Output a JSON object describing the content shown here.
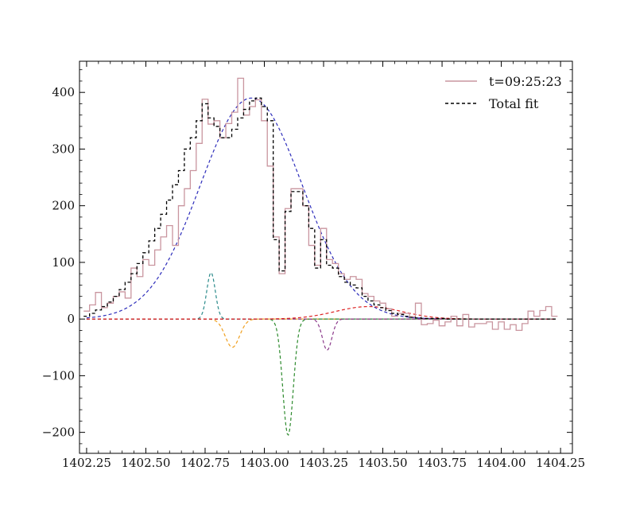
{
  "chart_data": {
    "type": "line",
    "title": "",
    "xlabel": "",
    "ylabel": "",
    "xlim": [
      1402.22,
      1404.3
    ],
    "ylim": [
      -237,
      455
    ],
    "grid": false,
    "legend_position": "top-right",
    "x_ticks": [
      1402.25,
      1402.5,
      1402.75,
      1403.0,
      1403.25,
      1403.5,
      1403.75,
      1404.0,
      1404.25
    ],
    "x_tick_labels": [
      "1402.25",
      "1402.50",
      "1402.75",
      "1403.00",
      "1403.25",
      "1403.50",
      "1403.75",
      "1404.00",
      "1404.25"
    ],
    "y_ticks": [
      -200,
      -100,
      0,
      100,
      200,
      300,
      400
    ],
    "y_tick_labels": [
      "−200",
      "−100",
      "0",
      "100",
      "200",
      "300",
      "400"
    ],
    "series": [
      {
        "name": "t=09:25:23",
        "style": "step",
        "color": "#c9959f",
        "x": [
          1402.25,
          1402.275,
          1402.3,
          1402.325,
          1402.35,
          1402.375,
          1402.4,
          1402.425,
          1402.45,
          1402.475,
          1402.5,
          1402.525,
          1402.55,
          1402.575,
          1402.6,
          1402.625,
          1402.65,
          1402.675,
          1402.7,
          1402.725,
          1402.75,
          1402.775,
          1402.8,
          1402.825,
          1402.85,
          1402.875,
          1402.9,
          1402.925,
          1402.95,
          1402.975,
          1403.0,
          1403.025,
          1403.05,
          1403.075,
          1403.1,
          1403.125,
          1403.15,
          1403.175,
          1403.2,
          1403.225,
          1403.25,
          1403.275,
          1403.3,
          1403.325,
          1403.35,
          1403.375,
          1403.4,
          1403.425,
          1403.45,
          1403.475,
          1403.5,
          1403.525,
          1403.55,
          1403.575,
          1403.6,
          1403.625,
          1403.65,
          1403.675,
          1403.7,
          1403.725,
          1403.75,
          1403.775,
          1403.8,
          1403.825,
          1403.85,
          1403.875,
          1403.9,
          1403.925,
          1403.95,
          1403.975,
          1404.0,
          1404.025,
          1404.05,
          1404.075,
          1404.1,
          1404.125,
          1404.15,
          1404.175,
          1404.2,
          1404.225
        ],
        "values": [
          14,
          25,
          47,
          20,
          28,
          40,
          48,
          37,
          90,
          75,
          105,
          95,
          122,
          145,
          165,
          130,
          200,
          230,
          262,
          310,
          388,
          344,
          350,
          320,
          345,
          365,
          425,
          360,
          375,
          387,
          350,
          270,
          145,
          80,
          195,
          230,
          230,
          200,
          130,
          95,
          160,
          105,
          98,
          80,
          70,
          75,
          70,
          45,
          40,
          32,
          28,
          18,
          5,
          10,
          10,
          4,
          28,
          -10,
          -8,
          -2,
          -12,
          -5,
          5,
          -12,
          8,
          -14,
          -8,
          -8,
          -5,
          -18,
          -5,
          -18,
          -10,
          -20,
          -8,
          14,
          5,
          15,
          22,
          5
        ]
      },
      {
        "name": "Total fit",
        "style": "step",
        "color": "#000000",
        "x": [
          1402.25,
          1402.275,
          1402.3,
          1402.325,
          1402.35,
          1402.375,
          1402.4,
          1402.425,
          1402.45,
          1402.475,
          1402.5,
          1402.525,
          1402.55,
          1402.575,
          1402.6,
          1402.625,
          1402.65,
          1402.675,
          1402.7,
          1402.725,
          1402.75,
          1402.775,
          1402.8,
          1402.825,
          1402.85,
          1402.875,
          1402.9,
          1402.925,
          1402.95,
          1402.975,
          1403.0,
          1403.025,
          1403.05,
          1403.075,
          1403.1,
          1403.125,
          1403.15,
          1403.175,
          1403.2,
          1403.225,
          1403.25,
          1403.275,
          1403.3,
          1403.325,
          1403.35,
          1403.375,
          1403.4,
          1403.425,
          1403.45,
          1403.475,
          1403.5,
          1403.525,
          1403.55,
          1403.575,
          1403.6,
          1403.625,
          1403.65,
          1403.675,
          1403.7,
          1403.725,
          1403.75,
          1403.775,
          1403.8,
          1403.825,
          1403.85,
          1403.875,
          1403.9,
          1403.925,
          1403.95,
          1403.975,
          1404.0,
          1404.025,
          1404.05,
          1404.075,
          1404.1,
          1404.125,
          1404.15,
          1404.175,
          1404.2,
          1404.225
        ],
        "values": [
          5,
          10,
          16,
          22,
          30,
          40,
          52,
          65,
          80,
          98,
          117,
          138,
          160,
          185,
          210,
          237,
          262,
          300,
          320,
          350,
          380,
          355,
          340,
          320,
          320,
          335,
          355,
          370,
          385,
          390,
          375,
          350,
          140,
          85,
          190,
          225,
          225,
          200,
          160,
          90,
          140,
          95,
          90,
          75,
          65,
          60,
          55,
          40,
          32,
          25,
          20,
          15,
          10,
          8,
          5,
          3,
          2,
          1,
          1,
          1,
          1,
          0,
          0,
          0,
          0,
          0,
          0,
          0,
          0,
          0,
          0,
          0,
          0,
          0,
          0,
          0,
          0,
          0,
          0,
          0
        ]
      }
    ],
    "components": [
      {
        "color": "#2d2dbb",
        "style": "dashed",
        "shape": "gaussian",
        "amplitude": 390,
        "center": 1402.945,
        "sigma": 0.215
      },
      {
        "color": "#2a8a8a",
        "style": "dashed",
        "shape": "gaussian",
        "amplitude": 82,
        "center": 1402.775,
        "sigma": 0.018
      },
      {
        "color": "#f0a020",
        "style": "dashed",
        "shape": "gaussian",
        "amplitude": -50,
        "center": 1402.865,
        "sigma": 0.03
      },
      {
        "color": "#2e8b2e",
        "style": "dashed",
        "shape": "gaussian",
        "amplitude": -205,
        "center": 1403.1,
        "sigma": 0.022
      },
      {
        "color": "#8b3a8b",
        "style": "dashed",
        "shape": "gaussian",
        "amplitude": -55,
        "center": 1403.265,
        "sigma": 0.02
      },
      {
        "color": "#dd2222",
        "style": "dashed",
        "shape": "gaussian",
        "amplitude": 22,
        "center": 1403.44,
        "sigma": 0.14
      }
    ]
  }
}
